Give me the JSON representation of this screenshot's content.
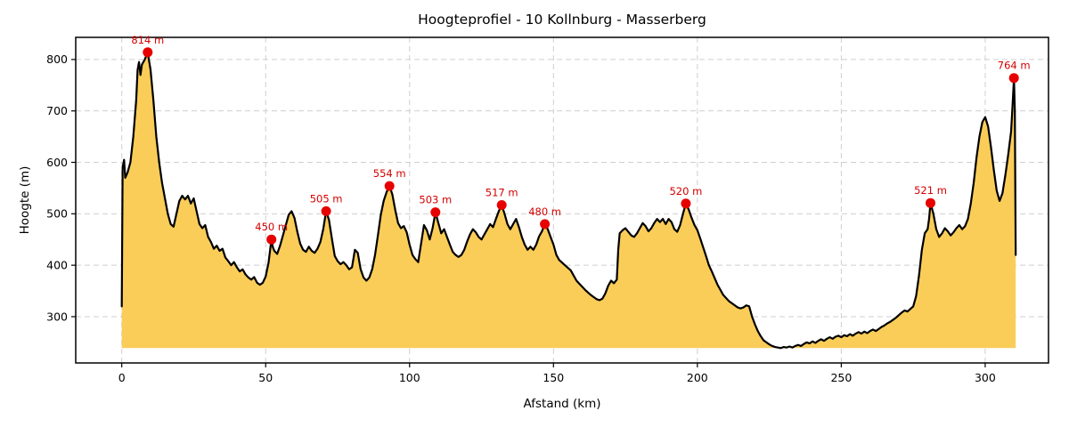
{
  "chart_data": {
    "type": "area",
    "title": "Hoogteprofiel - 10 Kollnburg - Masserberg",
    "xlabel": "Afstand (km)",
    "ylabel": "Hoogte (m)",
    "xlim": [
      -16,
      322
    ],
    "ylim": [
      210,
      843
    ],
    "xticks": [
      0,
      50,
      100,
      150,
      200,
      250,
      300
    ],
    "yticks": [
      300,
      400,
      500,
      600,
      700,
      800
    ],
    "grid": true,
    "legend": false,
    "colors": {
      "fill": "#FACD59",
      "line": "#000000",
      "marker": "#E60000",
      "marker_label": "#D40000",
      "grid": "#CFCFCF",
      "axis": "#000000"
    },
    "annotations": [
      {
        "x": 9,
        "y": 814,
        "label": "814 m"
      },
      {
        "x": 52,
        "y": 450,
        "label": "450 m"
      },
      {
        "x": 71,
        "y": 505,
        "label": "505 m"
      },
      {
        "x": 93,
        "y": 554,
        "label": "554 m"
      },
      {
        "x": 109,
        "y": 503,
        "label": "503 m"
      },
      {
        "x": 132,
        "y": 517,
        "label": "517 m"
      },
      {
        "x": 147,
        "y": 480,
        "label": "480 m"
      },
      {
        "x": 196,
        "y": 520,
        "label": "520 m"
      },
      {
        "x": 281,
        "y": 521,
        "label": "521 m"
      },
      {
        "x": 310,
        "y": 764,
        "label": "764 m"
      }
    ],
    "points": [
      [
        0,
        320
      ],
      [
        0.3,
        590
      ],
      [
        0.8,
        605
      ],
      [
        1.2,
        570
      ],
      [
        2,
        580
      ],
      [
        3,
        600
      ],
      [
        4,
        650
      ],
      [
        5,
        720
      ],
      [
        5.5,
        780
      ],
      [
        6,
        795
      ],
      [
        6.5,
        770
      ],
      [
        7,
        790
      ],
      [
        8,
        800
      ],
      [
        9,
        814
      ],
      [
        10,
        780
      ],
      [
        11,
        720
      ],
      [
        12,
        650
      ],
      [
        13,
        600
      ],
      [
        14,
        560
      ],
      [
        15,
        530
      ],
      [
        16,
        500
      ],
      [
        17,
        480
      ],
      [
        18,
        475
      ],
      [
        19,
        500
      ],
      [
        20,
        525
      ],
      [
        21,
        535
      ],
      [
        22,
        528
      ],
      [
        23,
        535
      ],
      [
        24,
        520
      ],
      [
        25,
        530
      ],
      [
        26,
        505
      ],
      [
        27,
        480
      ],
      [
        28,
        472
      ],
      [
        29,
        478
      ],
      [
        30,
        455
      ],
      [
        31,
        445
      ],
      [
        32,
        432
      ],
      [
        33,
        438
      ],
      [
        34,
        428
      ],
      [
        35,
        432
      ],
      [
        36,
        415
      ],
      [
        37,
        408
      ],
      [
        38,
        400
      ],
      [
        39,
        406
      ],
      [
        40,
        396
      ],
      [
        41,
        388
      ],
      [
        42,
        392
      ],
      [
        43,
        382
      ],
      [
        44,
        376
      ],
      [
        45,
        372
      ],
      [
        46,
        377
      ],
      [
        47,
        366
      ],
      [
        48,
        362
      ],
      [
        49,
        366
      ],
      [
        50,
        378
      ],
      [
        51,
        405
      ],
      [
        52,
        450
      ],
      [
        52.5,
        435
      ],
      [
        53,
        428
      ],
      [
        54,
        422
      ],
      [
        55,
        438
      ],
      [
        56,
        458
      ],
      [
        57,
        478
      ],
      [
        58,
        498
      ],
      [
        59,
        505
      ],
      [
        60,
        492
      ],
      [
        61,
        465
      ],
      [
        62,
        442
      ],
      [
        63,
        430
      ],
      [
        64,
        426
      ],
      [
        65,
        436
      ],
      [
        66,
        428
      ],
      [
        67,
        424
      ],
      [
        68,
        432
      ],
      [
        69,
        445
      ],
      [
        70,
        470
      ],
      [
        71,
        505
      ],
      [
        72,
        488
      ],
      [
        73,
        452
      ],
      [
        74,
        418
      ],
      [
        75,
        408
      ],
      [
        76,
        402
      ],
      [
        77,
        406
      ],
      [
        78,
        400
      ],
      [
        79,
        392
      ],
      [
        80,
        396
      ],
      [
        81,
        430
      ],
      [
        82,
        424
      ],
      [
        83,
        392
      ],
      [
        84,
        376
      ],
      [
        85,
        370
      ],
      [
        86,
        376
      ],
      [
        87,
        392
      ],
      [
        88,
        420
      ],
      [
        89,
        458
      ],
      [
        90,
        498
      ],
      [
        91,
        525
      ],
      [
        92,
        542
      ],
      [
        93,
        554
      ],
      [
        94,
        538
      ],
      [
        95,
        508
      ],
      [
        96,
        482
      ],
      [
        97,
        472
      ],
      [
        98,
        476
      ],
      [
        99,
        464
      ],
      [
        100,
        440
      ],
      [
        101,
        420
      ],
      [
        102,
        412
      ],
      [
        103,
        406
      ],
      [
        104,
        442
      ],
      [
        105,
        478
      ],
      [
        106,
        468
      ],
      [
        107,
        450
      ],
      [
        108,
        472
      ],
      [
        109,
        503
      ],
      [
        110,
        482
      ],
      [
        111,
        462
      ],
      [
        112,
        470
      ],
      [
        113,
        455
      ],
      [
        114,
        440
      ],
      [
        115,
        426
      ],
      [
        116,
        420
      ],
      [
        117,
        416
      ],
      [
        118,
        420
      ],
      [
        119,
        430
      ],
      [
        120,
        446
      ],
      [
        121,
        460
      ],
      [
        122,
        470
      ],
      [
        123,
        464
      ],
      [
        124,
        455
      ],
      [
        125,
        450
      ],
      [
        126,
        460
      ],
      [
        127,
        470
      ],
      [
        128,
        480
      ],
      [
        129,
        474
      ],
      [
        130,
        490
      ],
      [
        131,
        505
      ],
      [
        132,
        517
      ],
      [
        133,
        500
      ],
      [
        134,
        480
      ],
      [
        135,
        470
      ],
      [
        136,
        480
      ],
      [
        137,
        490
      ],
      [
        138,
        474
      ],
      [
        139,
        455
      ],
      [
        140,
        440
      ],
      [
        141,
        430
      ],
      [
        142,
        436
      ],
      [
        143,
        430
      ],
      [
        144,
        440
      ],
      [
        145,
        456
      ],
      [
        146,
        466
      ],
      [
        147,
        480
      ],
      [
        148,
        470
      ],
      [
        149,
        455
      ],
      [
        150,
        440
      ],
      [
        151,
        420
      ],
      [
        152,
        410
      ],
      [
        153,
        405
      ],
      [
        154,
        400
      ],
      [
        155,
        395
      ],
      [
        156,
        390
      ],
      [
        157,
        380
      ],
      [
        158,
        370
      ],
      [
        159,
        364
      ],
      [
        160,
        358
      ],
      [
        161,
        352
      ],
      [
        162,
        347
      ],
      [
        163,
        342
      ],
      [
        164,
        338
      ],
      [
        165,
        334
      ],
      [
        166,
        332
      ],
      [
        167,
        335
      ],
      [
        168,
        345
      ],
      [
        169,
        360
      ],
      [
        170,
        370
      ],
      [
        171,
        365
      ],
      [
        172,
        372
      ],
      [
        172.5,
        430
      ],
      [
        173,
        462
      ],
      [
        174,
        468
      ],
      [
        175,
        472
      ],
      [
        176,
        465
      ],
      [
        177,
        458
      ],
      [
        178,
        455
      ],
      [
        179,
        462
      ],
      [
        180,
        472
      ],
      [
        181,
        482
      ],
      [
        182,
        476
      ],
      [
        183,
        466
      ],
      [
        184,
        472
      ],
      [
        185,
        482
      ],
      [
        186,
        490
      ],
      [
        187,
        484
      ],
      [
        188,
        490
      ],
      [
        189,
        480
      ],
      [
        190,
        490
      ],
      [
        191,
        484
      ],
      [
        192,
        470
      ],
      [
        193,
        465
      ],
      [
        194,
        478
      ],
      [
        195,
        500
      ],
      [
        196,
        520
      ],
      [
        197,
        508
      ],
      [
        198,
        492
      ],
      [
        199,
        478
      ],
      [
        200,
        468
      ],
      [
        201,
        452
      ],
      [
        202,
        435
      ],
      [
        203,
        418
      ],
      [
        204,
        400
      ],
      [
        205,
        388
      ],
      [
        206,
        375
      ],
      [
        207,
        362
      ],
      [
        208,
        352
      ],
      [
        209,
        342
      ],
      [
        210,
        336
      ],
      [
        211,
        330
      ],
      [
        212,
        326
      ],
      [
        213,
        322
      ],
      [
        214,
        318
      ],
      [
        215,
        316
      ],
      [
        216,
        318
      ],
      [
        217,
        322
      ],
      [
        218,
        320
      ],
      [
        219,
        300
      ],
      [
        220,
        285
      ],
      [
        221,
        272
      ],
      [
        222,
        262
      ],
      [
        223,
        254
      ],
      [
        224,
        250
      ],
      [
        225,
        246
      ],
      [
        226,
        243
      ],
      [
        227,
        241
      ],
      [
        228,
        240
      ],
      [
        229,
        239
      ],
      [
        230,
        241
      ],
      [
        231,
        240
      ],
      [
        232,
        242
      ],
      [
        233,
        240
      ],
      [
        234,
        243
      ],
      [
        235,
        245
      ],
      [
        236,
        243
      ],
      [
        237,
        247
      ],
      [
        238,
        250
      ],
      [
        239,
        248
      ],
      [
        240,
        252
      ],
      [
        241,
        249
      ],
      [
        242,
        253
      ],
      [
        243,
        256
      ],
      [
        244,
        253
      ],
      [
        245,
        257
      ],
      [
        246,
        260
      ],
      [
        247,
        257
      ],
      [
        248,
        261
      ],
      [
        249,
        263
      ],
      [
        250,
        260
      ],
      [
        251,
        264
      ],
      [
        252,
        262
      ],
      [
        253,
        266
      ],
      [
        254,
        263
      ],
      [
        255,
        267
      ],
      [
        256,
        270
      ],
      [
        257,
        267
      ],
      [
        258,
        271
      ],
      [
        259,
        268
      ],
      [
        260,
        272
      ],
      [
        261,
        275
      ],
      [
        262,
        272
      ],
      [
        263,
        276
      ],
      [
        264,
        280
      ],
      [
        265,
        283
      ],
      [
        266,
        287
      ],
      [
        267,
        290
      ],
      [
        268,
        294
      ],
      [
        269,
        298
      ],
      [
        270,
        303
      ],
      [
        271,
        308
      ],
      [
        272,
        312
      ],
      [
        273,
        310
      ],
      [
        274,
        315
      ],
      [
        275,
        320
      ],
      [
        276,
        340
      ],
      [
        277,
        380
      ],
      [
        278,
        430
      ],
      [
        279,
        462
      ],
      [
        280,
        470
      ],
      [
        280.5,
        490
      ],
      [
        281,
        521
      ],
      [
        282,
        500
      ],
      [
        283,
        470
      ],
      [
        284,
        455
      ],
      [
        285,
        462
      ],
      [
        286,
        472
      ],
      [
        287,
        466
      ],
      [
        288,
        458
      ],
      [
        289,
        464
      ],
      [
        290,
        472
      ],
      [
        291,
        478
      ],
      [
        292,
        470
      ],
      [
        293,
        476
      ],
      [
        294,
        490
      ],
      [
        295,
        520
      ],
      [
        296,
        560
      ],
      [
        297,
        610
      ],
      [
        298,
        650
      ],
      [
        299,
        678
      ],
      [
        300,
        688
      ],
      [
        301,
        670
      ],
      [
        302,
        630
      ],
      [
        303,
        585
      ],
      [
        304,
        545
      ],
      [
        305,
        525
      ],
      [
        306,
        540
      ],
      [
        307,
        575
      ],
      [
        308,
        615
      ],
      [
        309,
        660
      ],
      [
        309.5,
        710
      ],
      [
        310,
        764
      ],
      [
        310.3,
        700
      ],
      [
        310.6,
        420
      ]
    ]
  }
}
